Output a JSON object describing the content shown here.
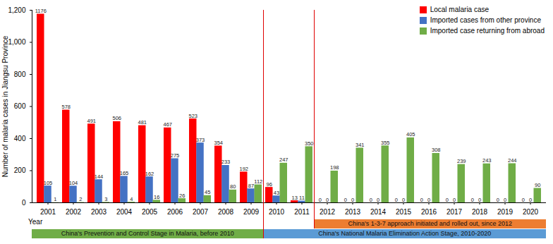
{
  "chart_data": {
    "type": "bar",
    "y_label": "Number of malaria cases in Jiangsu Province",
    "x_label": "Year",
    "categories": [
      "2001",
      "2002",
      "2003",
      "2004",
      "2005",
      "2006",
      "2007",
      "2008",
      "2009",
      "2010",
      "2011",
      "2012",
      "2013",
      "2014",
      "2015",
      "2016",
      "2017",
      "2018",
      "2019",
      "2020"
    ],
    "series": [
      {
        "name": "Local malaria case",
        "color": "#ff0000",
        "values": [
          1176,
          578,
          491,
          506,
          481,
          467,
          523,
          354,
          192,
          96,
          13,
          0,
          0,
          0,
          0,
          0,
          0,
          0,
          0,
          0
        ]
      },
      {
        "name": "Imported cases from other province",
        "color": "#4472c4",
        "values": [
          105,
          104,
          144,
          165,
          162,
          275,
          373,
          233,
          87,
          43,
          11,
          0,
          0,
          0,
          0,
          0,
          0,
          0,
          0,
          0
        ]
      },
      {
        "name": "Imported case returning from abroad",
        "color": "#70ad47",
        "values": [
          1,
          2,
          3,
          4,
          16,
          26,
          45,
          80,
          112,
          247,
          350,
          198,
          341,
          355,
          405,
          308,
          239,
          243,
          244,
          90
        ]
      }
    ],
    "ylim": [
      0,
      1200
    ],
    "yticks": [
      0,
      200,
      400,
      600,
      800,
      1000,
      1200
    ],
    "grid": false,
    "legend": "top-right",
    "data_labels": true,
    "annotations": [
      {
        "text": "China's Prevention and Control Stage in Malaria, before 2010",
        "from": "2001",
        "to": "2009",
        "color": "#70ad47"
      },
      {
        "text": "China's National Malaria Elimination Action Stage, 2010-2020",
        "from": "2010",
        "to": "2020",
        "color": "#5b9bd5"
      },
      {
        "text": "China's 1-3-7 approach initiated and rolled out, since 2012",
        "from": "2012",
        "to": "2020",
        "color": "#ed7d31"
      }
    ]
  }
}
